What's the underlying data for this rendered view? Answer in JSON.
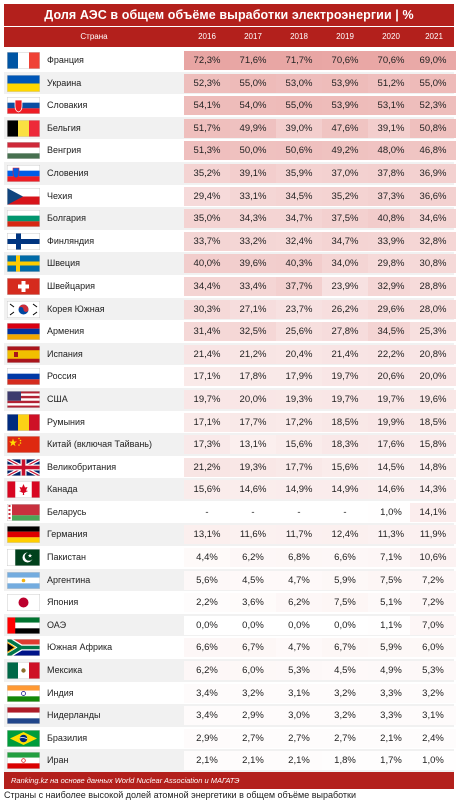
{
  "title": "Доля АЭС в общем объёме выработки электроэнергии | %",
  "footer": "Ranking.kz на основе данных World Nuclear Association и МАГАТЭ",
  "below_text": "Страны с наиболее высокой долей атомной энергетики в общем объёме выработки",
  "colors": {
    "header": "#b3201c",
    "row_alt": "#f1f1f1",
    "heat_low": "#ffffff",
    "heat_high": "#e8a5a3"
  },
  "chart_data": {
    "type": "table",
    "title": "Доля АЭС в общем объёме выработки электроэнергии | %",
    "columns": [
      "Страна",
      "2016",
      "2017",
      "2018",
      "2019",
      "2020",
      "2021"
    ],
    "rows": [
      {
        "country": "Франция",
        "flag": "france-flag",
        "values": [
          "72,3%",
          "71,6%",
          "71,7%",
          "70,6%",
          "70,6%",
          "69,0%"
        ]
      },
      {
        "country": "Украина",
        "flag": "ukraine-flag",
        "values": [
          "52,3%",
          "55,0%",
          "53,0%",
          "53,9%",
          "51,2%",
          "55,0%"
        ]
      },
      {
        "country": "Словакия",
        "flag": "slovakia-flag",
        "values": [
          "54,1%",
          "54,0%",
          "55,0%",
          "53,9%",
          "53,1%",
          "52,3%"
        ]
      },
      {
        "country": "Бельгия",
        "flag": "belgium-flag",
        "values": [
          "51,7%",
          "49,9%",
          "39,0%",
          "47,6%",
          "39,1%",
          "50,8%"
        ]
      },
      {
        "country": "Венгрия",
        "flag": "hungary-flag",
        "values": [
          "51,3%",
          "50,0%",
          "50,6%",
          "49,2%",
          "48,0%",
          "46,8%"
        ]
      },
      {
        "country": "Словения",
        "flag": "slovenia-flag",
        "values": [
          "35,2%",
          "39,1%",
          "35,9%",
          "37,0%",
          "37,8%",
          "36,9%"
        ]
      },
      {
        "country": "Чехия",
        "flag": "czechia-flag",
        "values": [
          "29,4%",
          "33,1%",
          "34,5%",
          "35,2%",
          "37,3%",
          "36,6%"
        ]
      },
      {
        "country": "Болгария",
        "flag": "bulgaria-flag",
        "values": [
          "35,0%",
          "34,3%",
          "34,7%",
          "37,5%",
          "40,8%",
          "34,6%"
        ]
      },
      {
        "country": "Финляндия",
        "flag": "finland-flag",
        "values": [
          "33,7%",
          "33,2%",
          "32,4%",
          "34,7%",
          "33,9%",
          "32,8%"
        ]
      },
      {
        "country": "Швеция",
        "flag": "sweden-flag",
        "values": [
          "40,0%",
          "39,6%",
          "40,3%",
          "34,0%",
          "29,8%",
          "30,8%"
        ]
      },
      {
        "country": "Швейцария",
        "flag": "switzerland-flag",
        "values": [
          "34,4%",
          "33,4%",
          "37,7%",
          "23,9%",
          "32,9%",
          "28,8%"
        ]
      },
      {
        "country": "Корея Южная",
        "flag": "south-korea-flag",
        "values": [
          "30,3%",
          "27,1%",
          "23,7%",
          "26,2%",
          "29,6%",
          "28,0%"
        ]
      },
      {
        "country": "Армения",
        "flag": "armenia-flag",
        "values": [
          "31,4%",
          "32,5%",
          "25,6%",
          "27,8%",
          "34,5%",
          "25,3%"
        ]
      },
      {
        "country": "Испания",
        "flag": "spain-flag",
        "values": [
          "21,4%",
          "21,2%",
          "20,4%",
          "21,4%",
          "22,2%",
          "20,8%"
        ]
      },
      {
        "country": "Россия",
        "flag": "russia-flag",
        "values": [
          "17,1%",
          "17,8%",
          "17,9%",
          "19,7%",
          "20,6%",
          "20,0%"
        ]
      },
      {
        "country": "США",
        "flag": "usa-flag",
        "values": [
          "19,7%",
          "20,0%",
          "19,3%",
          "19,7%",
          "19,7%",
          "19,6%"
        ]
      },
      {
        "country": "Румыния",
        "flag": "romania-flag",
        "values": [
          "17,1%",
          "17,7%",
          "17,2%",
          "18,5%",
          "19,9%",
          "18,5%"
        ]
      },
      {
        "country": "Китай (включая Тайвань)",
        "flag": "china-flag",
        "values": [
          "17,3%",
          "13,1%",
          "15,6%",
          "18,3%",
          "17,6%",
          "15,8%"
        ]
      },
      {
        "country": "Великобритания",
        "flag": "uk-flag",
        "values": [
          "21,2%",
          "19,3%",
          "17,7%",
          "15,6%",
          "14,5%",
          "14,8%"
        ]
      },
      {
        "country": "Канада",
        "flag": "canada-flag",
        "values": [
          "15,6%",
          "14,6%",
          "14,9%",
          "14,9%",
          "14,6%",
          "14,3%"
        ]
      },
      {
        "country": "Беларусь",
        "flag": "belarus-flag",
        "values": [
          "-",
          "-",
          "-",
          "-",
          "1,0%",
          "14,1%"
        ]
      },
      {
        "country": "Германия",
        "flag": "germany-flag",
        "values": [
          "13,1%",
          "11,6%",
          "11,7%",
          "12,4%",
          "11,3%",
          "11,9%"
        ]
      },
      {
        "country": "Пакистан",
        "flag": "pakistan-flag",
        "values": [
          "4,4%",
          "6,2%",
          "6,8%",
          "6,6%",
          "7,1%",
          "10,6%"
        ]
      },
      {
        "country": "Аргентина",
        "flag": "argentina-flag",
        "values": [
          "5,6%",
          "4,5%",
          "4,7%",
          "5,9%",
          "7,5%",
          "7,2%"
        ]
      },
      {
        "country": "Япония",
        "flag": "japan-flag",
        "values": [
          "2,2%",
          "3,6%",
          "6,2%",
          "7,5%",
          "5,1%",
          "7,2%"
        ]
      },
      {
        "country": "ОАЭ",
        "flag": "uae-flag",
        "values": [
          "0,0%",
          "0,0%",
          "0,0%",
          "0,0%",
          "1,1%",
          "7,0%"
        ]
      },
      {
        "country": "Южная Африка",
        "flag": "south-africa-flag",
        "values": [
          "6,6%",
          "6,7%",
          "4,7%",
          "6,7%",
          "5,9%",
          "6,0%"
        ]
      },
      {
        "country": "Мексика",
        "flag": "mexico-flag",
        "values": [
          "6,2%",
          "6,0%",
          "5,3%",
          "4,5%",
          "4,9%",
          "5,3%"
        ]
      },
      {
        "country": "Индия",
        "flag": "india-flag",
        "values": [
          "3,4%",
          "3,2%",
          "3,1%",
          "3,2%",
          "3,3%",
          "3,2%"
        ]
      },
      {
        "country": "Нидерланды",
        "flag": "netherlands-flag",
        "values": [
          "3,4%",
          "2,9%",
          "3,0%",
          "3,2%",
          "3,3%",
          "3,1%"
        ]
      },
      {
        "country": "Бразилия",
        "flag": "brazil-flag",
        "values": [
          "2,9%",
          "2,7%",
          "2,7%",
          "2,7%",
          "2,1%",
          "2,4%"
        ]
      },
      {
        "country": "Иран",
        "flag": "iran-flag",
        "values": [
          "2,1%",
          "2,1%",
          "2,1%",
          "1,8%",
          "1,7%",
          "1,0%"
        ]
      }
    ]
  }
}
